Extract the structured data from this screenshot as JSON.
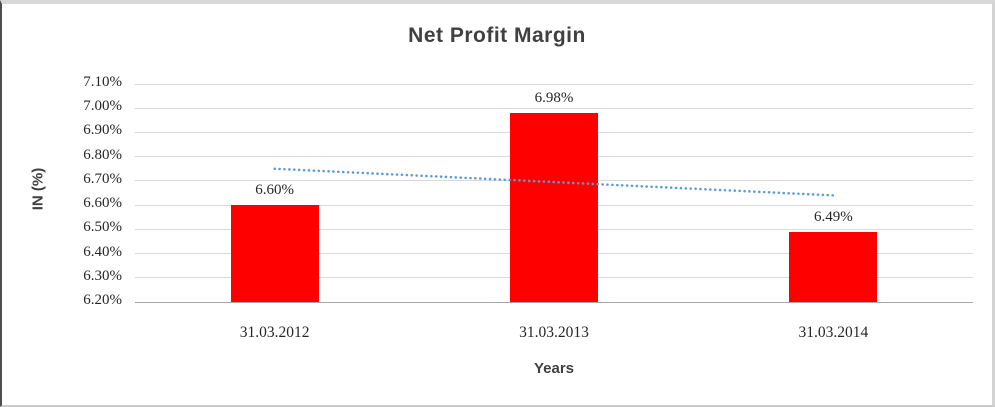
{
  "chart_data": {
    "type": "bar",
    "title": "Net Profit Margin",
    "xlabel": "Years",
    "ylabel": "IN (%)",
    "categories": [
      "31.03.2012",
      "31.03.2013",
      "31.03.2014"
    ],
    "values": [
      6.6,
      6.98,
      6.49
    ],
    "data_labels": [
      "6.60%",
      "6.98%",
      "6.49%"
    ],
    "y_ticks": [
      "7.10%",
      "7.00%",
      "6.90%",
      "6.80%",
      "6.70%",
      "6.60%",
      "6.50%",
      "6.40%",
      "6.30%",
      "6.20%"
    ],
    "ylim": [
      6.2,
      7.1
    ],
    "grid": true,
    "legend": false,
    "bar_color": "#ff0000",
    "gridline_color": "#d9d9d9",
    "axis_line_color": "#a6a6a6",
    "trendline": {
      "style": "dotted",
      "color": "#5b9bd5",
      "start_value": 6.75,
      "end_value": 6.64
    }
  }
}
